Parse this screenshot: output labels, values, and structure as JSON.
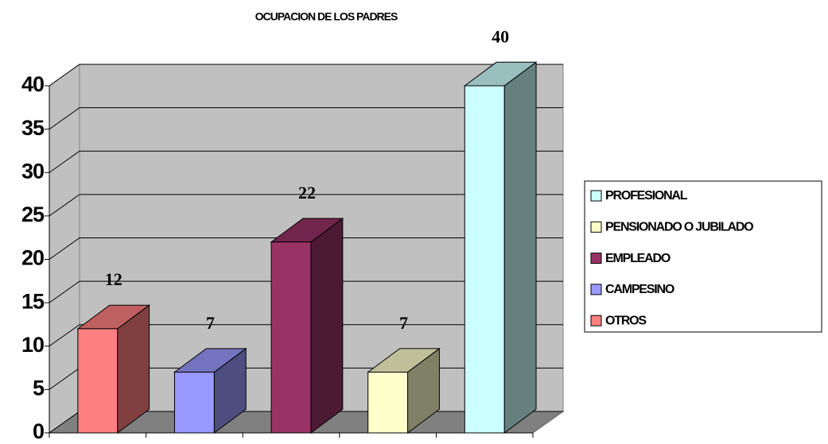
{
  "chart_data": {
    "type": "bar",
    "title": "OCUPACION DE LOS PADRES",
    "categories": [
      "OTROS",
      "CAMPESINO",
      "EMPLEADO",
      "PENSIONADO O JUBILADO",
      "PROFESIONAL"
    ],
    "values": [
      12,
      7,
      22,
      7,
      40
    ],
    "colors": [
      "#FF8080",
      "#9999FF",
      "#993366",
      "#FFFFCC",
      "#CCFFFF"
    ],
    "ylim": [
      0,
      40
    ],
    "yticks": [
      0,
      5,
      10,
      15,
      20,
      25,
      30,
      35,
      40
    ],
    "grid": true,
    "legend": "right"
  }
}
